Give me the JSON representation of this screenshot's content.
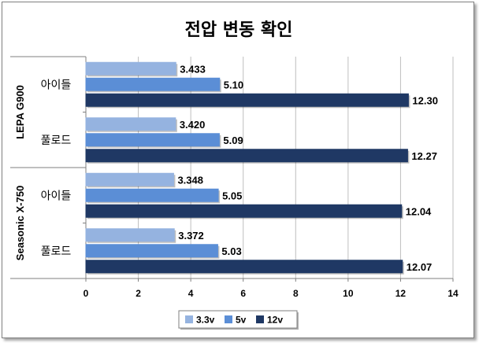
{
  "chart_data": {
    "type": "bar",
    "orientation": "horizontal",
    "title": "전압 변동 확인",
    "groups": [
      {
        "name": "LEPA G900",
        "categories": [
          "아이들",
          "풀로드"
        ]
      },
      {
        "name": "Seasonic X-750",
        "categories": [
          "아이들",
          "풀로드"
        ]
      }
    ],
    "series": [
      {
        "name": "3.3v",
        "color": "#95b3e0",
        "values": [
          3.433,
          3.42,
          3.348,
          3.372
        ],
        "labels": [
          "3.433",
          "3.420",
          "3.348",
          "3.372"
        ]
      },
      {
        "name": "5v",
        "color": "#5b8ed6",
        "values": [
          5.1,
          5.09,
          5.05,
          5.03
        ],
        "labels": [
          "5.10",
          "5.09",
          "5.05",
          "5.03"
        ]
      },
      {
        "name": "12v",
        "color": "#1f3864",
        "values": [
          12.3,
          12.27,
          12.04,
          12.07
        ],
        "labels": [
          "12.30",
          "12.27",
          "12.04",
          "12.07"
        ]
      }
    ],
    "xlim": [
      0,
      14
    ],
    "xticks": [
      0,
      2,
      4,
      6,
      8,
      10,
      12,
      14
    ],
    "grid": true,
    "legend_position": "bottom"
  }
}
